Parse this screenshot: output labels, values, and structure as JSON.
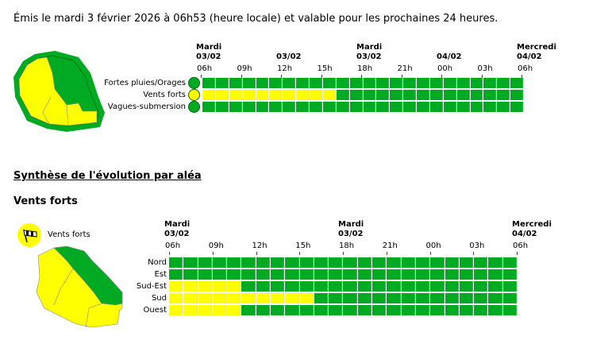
{
  "issued": "Émis le mardi 3 février 2026 à 06h53 (heure locale) et valable pour les prochaines 24 heures.",
  "colors": {
    "green": "#00aa22",
    "yellow": "#ffff00",
    "border": "#00aa22"
  },
  "day_labels": [
    {
      "day": "Mardi",
      "date": "03/02"
    },
    {
      "day": "",
      "date": "03/02"
    },
    {
      "day": "Mardi",
      "date": "03/02"
    },
    {
      "day": "",
      "date": "04/02"
    },
    {
      "day": "Mercredi",
      "date": "04/02"
    }
  ],
  "day_labels_bottom": [
    {
      "day": "Mardi",
      "date": "03/02"
    },
    {
      "day": "Mardi",
      "date": "03/02"
    },
    {
      "day": "Mercredi",
      "date": "04/02"
    }
  ],
  "hours": [
    "06h",
    "09h",
    "12h",
    "15h",
    "18h",
    "21h",
    "00h",
    "03h",
    "06h"
  ],
  "overview": {
    "rows": [
      {
        "label": "Fortes pluies/Orages",
        "icon": "rain-storm-icon",
        "levels": [
          0,
          0,
          0,
          0,
          0,
          0,
          0,
          0,
          0,
          0,
          0,
          0,
          0,
          0,
          0,
          0,
          0,
          0,
          0,
          0,
          0,
          0,
          0,
          0
        ]
      },
      {
        "label": "Vents forts",
        "icon": "wind-icon",
        "levels": [
          1,
          1,
          1,
          1,
          1,
          1,
          1,
          1,
          1,
          1,
          0,
          0,
          0,
          0,
          0,
          0,
          0,
          0,
          0,
          0,
          0,
          0,
          0,
          0
        ]
      },
      {
        "label": "Vagues-submersion",
        "icon": "waves-icon",
        "levels": [
          0,
          0,
          0,
          0,
          0,
          0,
          0,
          0,
          0,
          0,
          0,
          0,
          0,
          0,
          0,
          0,
          0,
          0,
          0,
          0,
          0,
          0,
          0,
          0
        ]
      }
    ]
  },
  "synthese_title": "Synthèse de l'évolution par aléa",
  "hazard_title": "Vents forts",
  "hazard_badge": "Vents forts",
  "detail": {
    "rows": [
      {
        "label": "Nord",
        "levels": [
          0,
          0,
          0,
          0,
          0,
          0,
          0,
          0,
          0,
          0,
          0,
          0,
          0,
          0,
          0,
          0,
          0,
          0,
          0,
          0,
          0,
          0,
          0,
          0
        ]
      },
      {
        "label": "Est",
        "levels": [
          0,
          0,
          0,
          0,
          0,
          0,
          0,
          0,
          0,
          0,
          0,
          0,
          0,
          0,
          0,
          0,
          0,
          0,
          0,
          0,
          0,
          0,
          0,
          0
        ]
      },
      {
        "label": "Sud-Est",
        "levels": [
          1,
          1,
          1,
          1,
          1,
          0,
          0,
          0,
          0,
          0,
          0,
          0,
          0,
          0,
          0,
          0,
          0,
          0,
          0,
          0,
          0,
          0,
          0,
          0
        ]
      },
      {
        "label": "Sud",
        "levels": [
          1,
          1,
          1,
          1,
          1,
          1,
          1,
          1,
          1,
          1,
          0,
          0,
          0,
          0,
          0,
          0,
          0,
          0,
          0,
          0,
          0,
          0,
          0,
          0
        ]
      },
      {
        "label": "Ouest",
        "levels": [
          1,
          1,
          1,
          1,
          1,
          0,
          0,
          0,
          0,
          0,
          0,
          0,
          0,
          0,
          0,
          0,
          0,
          0,
          0,
          0,
          0,
          0,
          0,
          0
        ]
      }
    ]
  }
}
